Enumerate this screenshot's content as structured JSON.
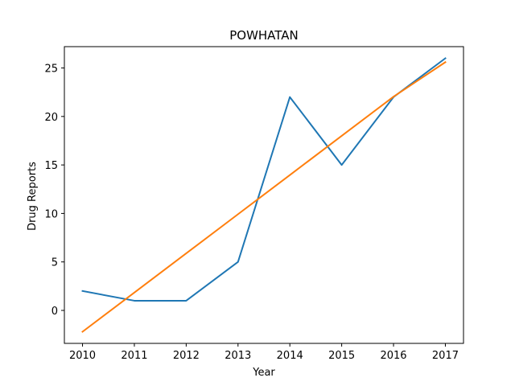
{
  "chart_data": {
    "type": "line",
    "title": "POWHATAN",
    "xlabel": "Year",
    "ylabel": "Drug Reports",
    "x": [
      2010,
      2011,
      2012,
      2013,
      2014,
      2015,
      2016,
      2017
    ],
    "xlim": [
      2009.65,
      2017.35
    ],
    "ylim": [
      -3.4,
      27.2
    ],
    "xticks": [
      2010,
      2011,
      2012,
      2013,
      2014,
      2015,
      2016,
      2017
    ],
    "yticks": [
      0,
      5,
      10,
      15,
      20,
      25
    ],
    "grid": false,
    "series": [
      {
        "values": [
          2,
          1,
          1,
          5,
          22,
          15,
          22,
          26
        ],
        "color": "#1f77b4"
      },
      {
        "values": [
          -2.2,
          1.84,
          5.88,
          9.92,
          13.96,
          18.0,
          22.04,
          25.6
        ],
        "color": "#ff7f0e"
      }
    ]
  }
}
